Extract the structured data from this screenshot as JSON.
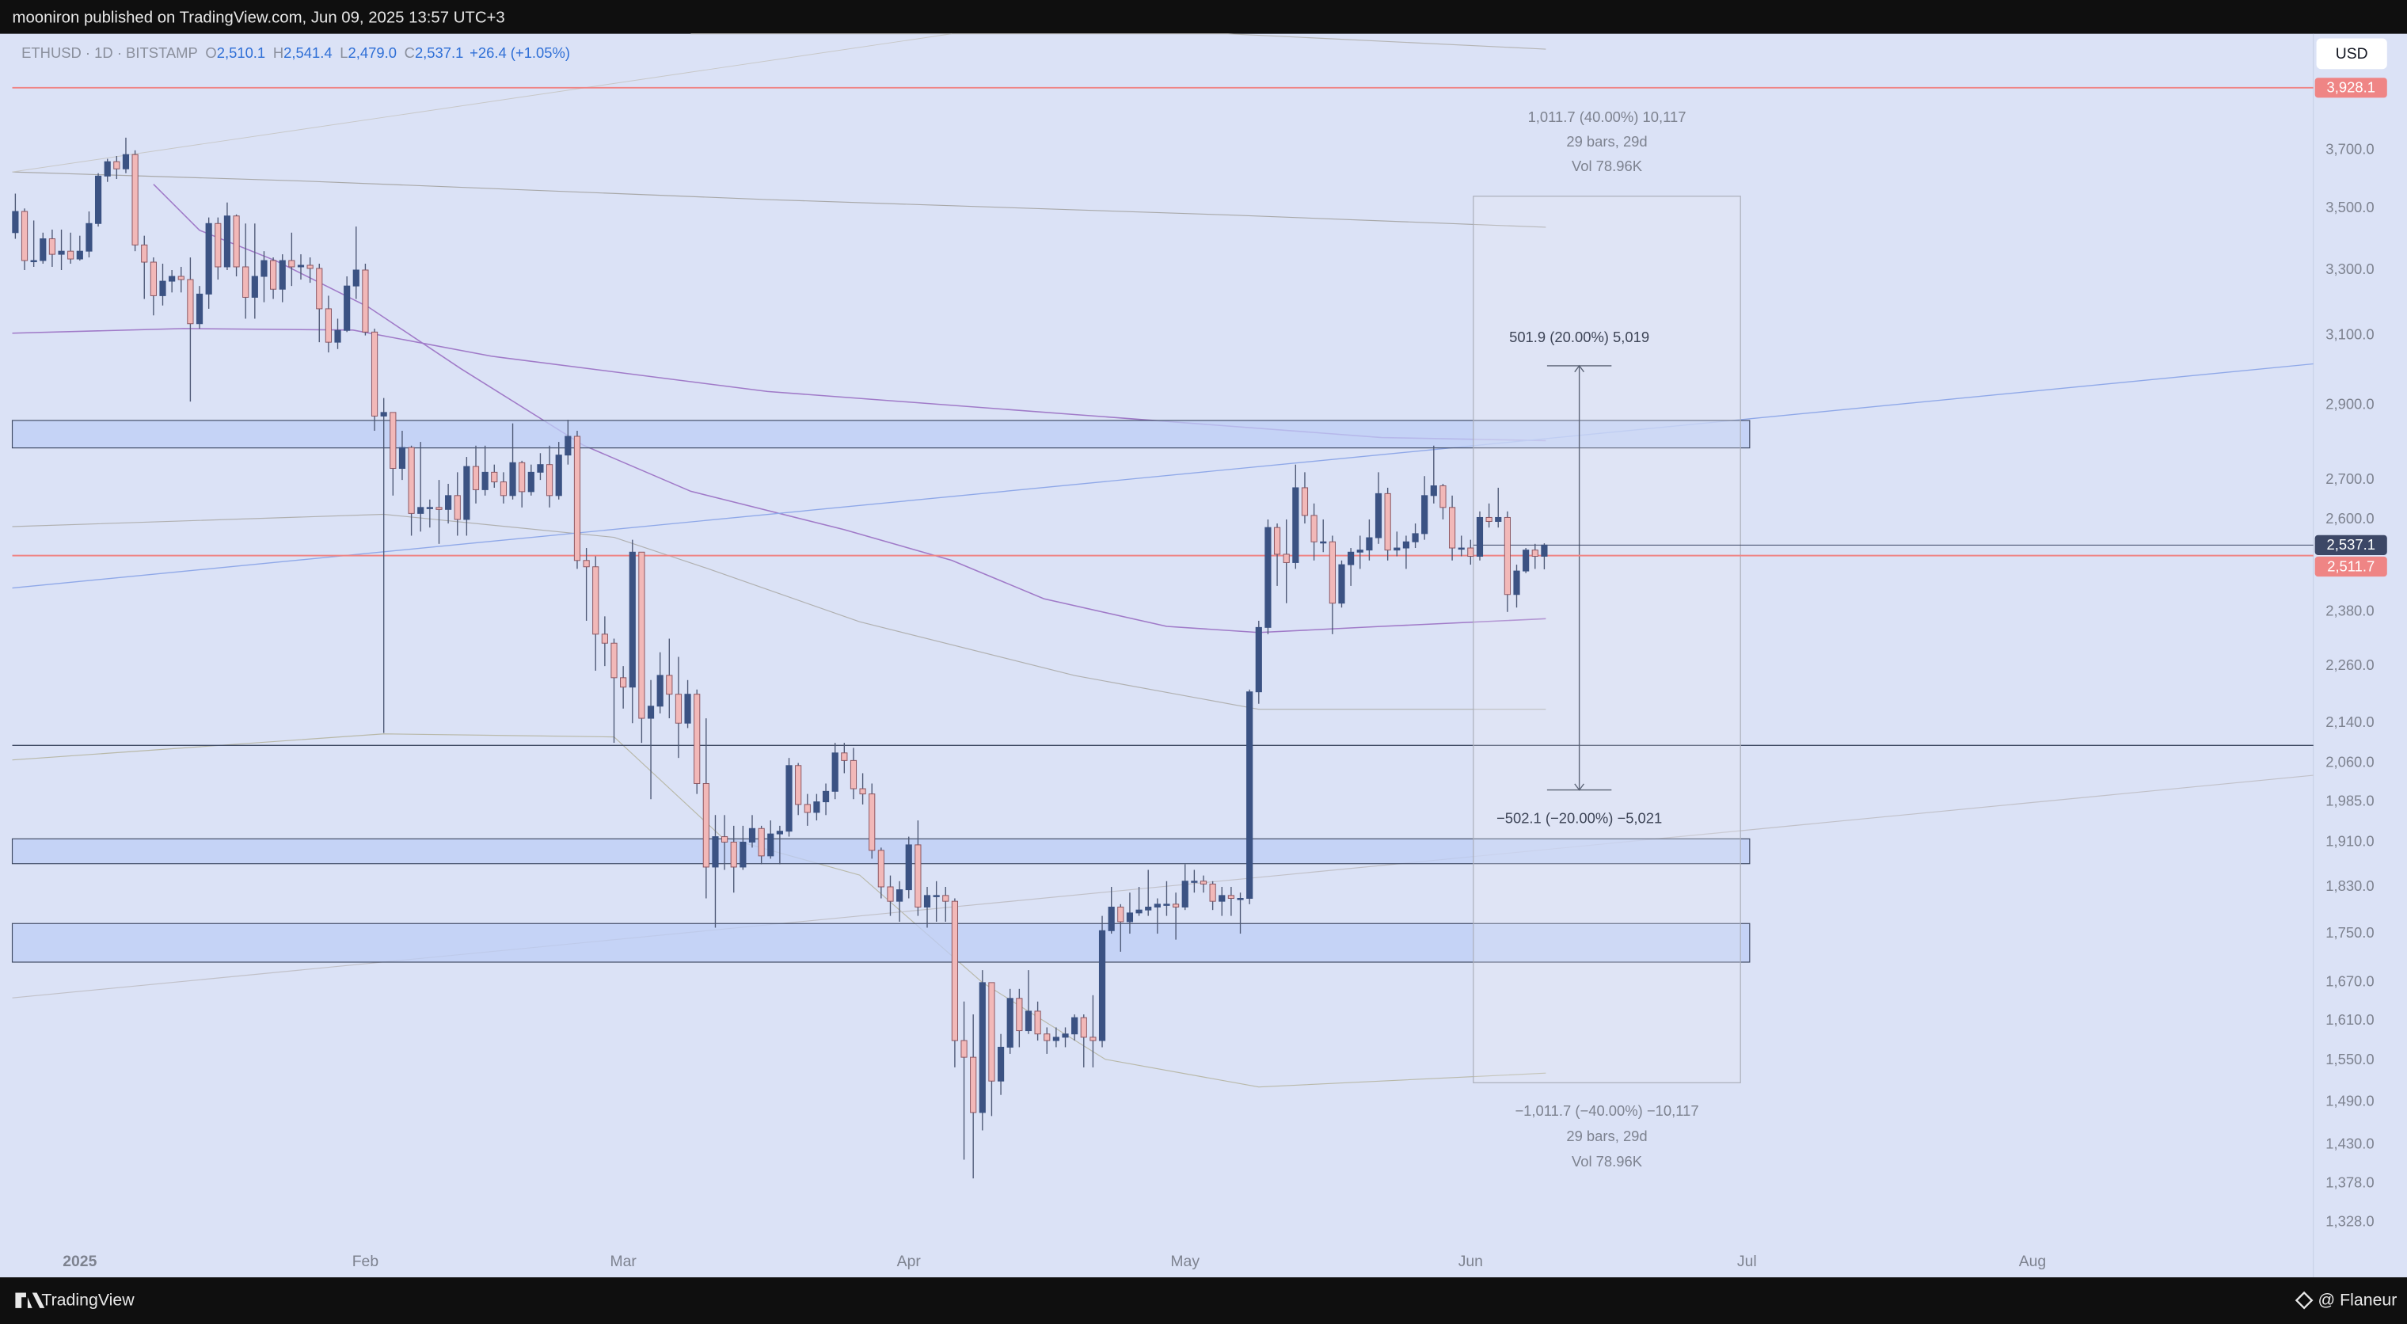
{
  "header": {
    "text": "mooniron published on TradingView.com, Jun 09, 2025 13:57 UTC+3"
  },
  "footer": {
    "brand": "TradingView",
    "author": "@ Flaneur"
  },
  "chart_data": {
    "type": "candlestick",
    "legend": {
      "symbol": "ETHUSD · 1D · BITSTAMP",
      "fields": [
        {
          "key": "O",
          "value": "2,510.1"
        },
        {
          "key": "H",
          "value": "2,541.4"
        },
        {
          "key": "L",
          "value": "2,479.0"
        },
        {
          "key": "C",
          "value": "2,537.1"
        }
      ],
      "change": "+26.4 (+1.05%)"
    },
    "currency": "USD",
    "up_color": "#3b5283",
    "down_color": "#f2b8b8",
    "down_border": "#8a5560",
    "wick_color": "#4d5875",
    "x": [
      -7,
      -6,
      -5,
      -4,
      -3,
      -2,
      -1,
      0,
      1,
      2,
      3,
      4,
      5,
      6,
      7,
      8,
      9,
      10,
      11,
      12,
      13,
      14,
      15,
      16,
      17,
      18,
      19,
      20,
      21,
      22,
      23,
      24,
      25,
      26,
      27,
      28,
      29,
      30,
      31,
      32,
      33,
      34,
      35,
      36,
      37,
      38,
      39,
      40,
      41,
      42,
      43,
      44,
      45,
      46,
      47,
      48,
      49,
      50,
      51,
      52,
      53,
      54,
      55,
      56,
      57,
      58,
      59,
      60,
      61,
      62,
      63,
      64,
      65,
      66,
      67,
      68,
      69,
      70,
      71,
      72,
      73,
      74,
      75,
      76,
      77,
      78,
      79,
      80,
      81,
      82,
      83,
      84,
      85,
      86,
      87,
      88,
      89,
      90,
      91,
      92,
      93,
      94,
      95,
      96,
      97,
      98,
      99,
      100,
      101,
      102,
      103,
      104,
      105,
      106,
      107,
      108,
      109,
      110,
      111,
      112,
      113,
      114,
      115,
      116,
      117,
      118,
      119,
      120,
      121,
      122,
      123,
      124,
      125,
      126,
      127,
      128,
      129,
      130,
      131,
      132,
      133,
      134,
      135,
      136,
      137,
      138,
      139,
      140,
      141,
      142,
      143,
      144,
      145,
      146,
      147,
      148,
      149,
      150,
      151,
      152,
      153,
      154,
      155,
      156,
      157,
      158,
      159
    ],
    "ohlc": [
      [
        3420,
        3550,
        3400,
        3490
      ],
      [
        3490,
        3500,
        3300,
        3330
      ],
      [
        3330,
        3460,
        3310,
        3330
      ],
      [
        3330,
        3420,
        3320,
        3400
      ],
      [
        3400,
        3430,
        3310,
        3350
      ],
      [
        3350,
        3430,
        3300,
        3360
      ],
      [
        3360,
        3420,
        3320,
        3335
      ],
      [
        3335,
        3410,
        3330,
        3360
      ],
      [
        3360,
        3490,
        3340,
        3450
      ],
      [
        3450,
        3620,
        3440,
        3610
      ],
      [
        3610,
        3670,
        3590,
        3660
      ],
      [
        3660,
        3680,
        3600,
        3635
      ],
      [
        3635,
        3745,
        3620,
        3685
      ],
      [
        3685,
        3700,
        3360,
        3380
      ],
      [
        3380,
        3410,
        3210,
        3325
      ],
      [
        3325,
        3340,
        3160,
        3220
      ],
      [
        3220,
        3320,
        3190,
        3265
      ],
      [
        3265,
        3300,
        3230,
        3280
      ],
      [
        3280,
        3310,
        3230,
        3270
      ],
      [
        3270,
        3340,
        2910,
        3135
      ],
      [
        3135,
        3250,
        3120,
        3225
      ],
      [
        3225,
        3470,
        3180,
        3450
      ],
      [
        3450,
        3470,
        3270,
        3310
      ],
      [
        3310,
        3520,
        3300,
        3475
      ],
      [
        3475,
        3480,
        3280,
        3310
      ],
      [
        3310,
        3450,
        3150,
        3215
      ],
      [
        3215,
        3450,
        3150,
        3280
      ],
      [
        3280,
        3360,
        3200,
        3330
      ],
      [
        3330,
        3340,
        3210,
        3240
      ],
      [
        3240,
        3350,
        3200,
        3330
      ],
      [
        3330,
        3420,
        3250,
        3310
      ],
      [
        3310,
        3350,
        3270,
        3315
      ],
      [
        3315,
        3340,
        3260,
        3305
      ],
      [
        3305,
        3320,
        3080,
        3180
      ],
      [
        3180,
        3220,
        3050,
        3080
      ],
      [
        3080,
        3150,
        3060,
        3115
      ],
      [
        3115,
        3280,
        3110,
        3250
      ],
      [
        3250,
        3440,
        3210,
        3300
      ],
      [
        3300,
        3320,
        3100,
        3110
      ],
      [
        3110,
        3120,
        2830,
        2870
      ],
      [
        2870,
        2920,
        2120,
        2880
      ],
      [
        2880,
        2880,
        2660,
        2730
      ],
      [
        2730,
        2830,
        2700,
        2785
      ],
      [
        2785,
        2790,
        2560,
        2615
      ],
      [
        2615,
        2800,
        2570,
        2630
      ],
      [
        2630,
        2650,
        2580,
        2630
      ],
      [
        2630,
        2700,
        2540,
        2625
      ],
      [
        2625,
        2690,
        2590,
        2660
      ],
      [
        2660,
        2720,
        2560,
        2600
      ],
      [
        2600,
        2760,
        2560,
        2735
      ],
      [
        2735,
        2790,
        2640,
        2675
      ],
      [
        2675,
        2790,
        2660,
        2720
      ],
      [
        2720,
        2740,
        2680,
        2695
      ],
      [
        2695,
        2720,
        2640,
        2660
      ],
      [
        2660,
        2850,
        2650,
        2745
      ],
      [
        2745,
        2750,
        2630,
        2670
      ],
      [
        2670,
        2740,
        2660,
        2720
      ],
      [
        2720,
        2770,
        2700,
        2740
      ],
      [
        2740,
        2790,
        2630,
        2660
      ],
      [
        2660,
        2800,
        2650,
        2765
      ],
      [
        2765,
        2860,
        2740,
        2815
      ],
      [
        2815,
        2830,
        2480,
        2500
      ],
      [
        2500,
        2530,
        2360,
        2485
      ],
      [
        2485,
        2510,
        2250,
        2330
      ],
      [
        2330,
        2370,
        2260,
        2310
      ],
      [
        2310,
        2320,
        2100,
        2235
      ],
      [
        2235,
        2260,
        2170,
        2215
      ],
      [
        2215,
        2550,
        2140,
        2520
      ],
      [
        2520,
        2520,
        2100,
        2150
      ],
      [
        2150,
        2230,
        1990,
        2175
      ],
      [
        2175,
        2290,
        2160,
        2240
      ],
      [
        2240,
        2320,
        2150,
        2200
      ],
      [
        2200,
        2280,
        2070,
        2140
      ],
      [
        2140,
        2230,
        2130,
        2200
      ],
      [
        2200,
        2210,
        2000,
        2020
      ],
      [
        2020,
        2150,
        1810,
        1865
      ],
      [
        1865,
        1960,
        1760,
        1920
      ],
      [
        1920,
        1960,
        1860,
        1910
      ],
      [
        1910,
        1940,
        1820,
        1865
      ],
      [
        1865,
        1940,
        1860,
        1910
      ],
      [
        1910,
        1960,
        1900,
        1935
      ],
      [
        1935,
        1940,
        1870,
        1885
      ],
      [
        1885,
        1950,
        1880,
        1925
      ],
      [
        1925,
        1940,
        1870,
        1930
      ],
      [
        1930,
        2070,
        1920,
        2055
      ],
      [
        2055,
        2060,
        1960,
        1980
      ],
      [
        1980,
        2000,
        1940,
        1965
      ],
      [
        1965,
        2000,
        1950,
        1985
      ],
      [
        1985,
        2020,
        1960,
        2005
      ],
      [
        2005,
        2100,
        1990,
        2080
      ],
      [
        2080,
        2100,
        2040,
        2065
      ],
      [
        2065,
        2090,
        1990,
        2010
      ],
      [
        2010,
        2040,
        1980,
        2000
      ],
      [
        2000,
        2020,
        1880,
        1895
      ],
      [
        1895,
        1900,
        1810,
        1830
      ],
      [
        1830,
        1850,
        1780,
        1805
      ],
      [
        1805,
        1840,
        1770,
        1825
      ],
      [
        1825,
        1920,
        1810,
        1905
      ],
      [
        1905,
        1950,
        1780,
        1795
      ],
      [
        1795,
        1830,
        1760,
        1815
      ],
      [
        1815,
        1840,
        1770,
        1815
      ],
      [
        1815,
        1830,
        1770,
        1805
      ],
      [
        1805,
        1810,
        1540,
        1580
      ],
      [
        1580,
        1640,
        1410,
        1555
      ],
      [
        1555,
        1620,
        1385,
        1475
      ],
      [
        1475,
        1690,
        1450,
        1670
      ],
      [
        1670,
        1670,
        1470,
        1520
      ],
      [
        1520,
        1590,
        1500,
        1570
      ],
      [
        1570,
        1660,
        1560,
        1645
      ],
      [
        1645,
        1660,
        1570,
        1595
      ],
      [
        1595,
        1690,
        1590,
        1625
      ],
      [
        1625,
        1640,
        1580,
        1590
      ],
      [
        1590,
        1600,
        1560,
        1580
      ],
      [
        1580,
        1600,
        1570,
        1585
      ],
      [
        1585,
        1600,
        1570,
        1590
      ],
      [
        1590,
        1620,
        1580,
        1615
      ],
      [
        1615,
        1620,
        1540,
        1585
      ],
      [
        1585,
        1650,
        1540,
        1580
      ],
      [
        1580,
        1780,
        1570,
        1755
      ],
      [
        1755,
        1830,
        1750,
        1795
      ],
      [
        1795,
        1800,
        1720,
        1770
      ],
      [
        1770,
        1820,
        1750,
        1785
      ],
      [
        1785,
        1830,
        1780,
        1790
      ],
      [
        1790,
        1860,
        1780,
        1795
      ],
      [
        1795,
        1810,
        1750,
        1800
      ],
      [
        1800,
        1840,
        1780,
        1800
      ],
      [
        1800,
        1820,
        1740,
        1795
      ],
      [
        1795,
        1870,
        1790,
        1840
      ],
      [
        1840,
        1860,
        1820,
        1840
      ],
      [
        1840,
        1850,
        1820,
        1835
      ],
      [
        1835,
        1840,
        1790,
        1805
      ],
      [
        1805,
        1830,
        1780,
        1815
      ],
      [
        1815,
        1830,
        1780,
        1810
      ],
      [
        1810,
        1820,
        1750,
        1810
      ],
      [
        1810,
        2210,
        1800,
        2205
      ],
      [
        2205,
        2360,
        2180,
        2345
      ],
      [
        2345,
        2600,
        2330,
        2580
      ],
      [
        2580,
        2590,
        2440,
        2515
      ],
      [
        2515,
        2600,
        2400,
        2495
      ],
      [
        2495,
        2740,
        2480,
        2680
      ],
      [
        2680,
        2720,
        2590,
        2610
      ],
      [
        2610,
        2640,
        2500,
        2545
      ],
      [
        2545,
        2600,
        2520,
        2545
      ],
      [
        2545,
        2560,
        2330,
        2400
      ],
      [
        2400,
        2500,
        2390,
        2490
      ],
      [
        2490,
        2530,
        2440,
        2520
      ],
      [
        2520,
        2560,
        2480,
        2525
      ],
      [
        2525,
        2600,
        2500,
        2555
      ],
      [
        2555,
        2720,
        2540,
        2665
      ],
      [
        2665,
        2680,
        2500,
        2525
      ],
      [
        2525,
        2570,
        2510,
        2530
      ],
      [
        2530,
        2560,
        2480,
        2545
      ],
      [
        2545,
        2590,
        2530,
        2565
      ],
      [
        2565,
        2710,
        2550,
        2660
      ],
      [
        2660,
        2790,
        2640,
        2685
      ],
      [
        2685,
        2690,
        2600,
        2630
      ],
      [
        2630,
        2660,
        2500,
        2530
      ],
      [
        2530,
        2560,
        2510,
        2530
      ],
      [
        2530,
        2550,
        2490,
        2510
      ],
      [
        2510,
        2620,
        2500,
        2605
      ],
      [
        2605,
        2640,
        2580,
        2595
      ],
      [
        2595,
        2680,
        2580,
        2605
      ],
      [
        2605,
        2620,
        2380,
        2420
      ],
      [
        2420,
        2490,
        2390,
        2475
      ],
      [
        2475,
        2530,
        2470,
        2525
      ],
      [
        2525,
        2540,
        2480,
        2510
      ],
      [
        2510.1,
        2541.4,
        2479.0,
        2537.1
      ]
    ],
    "xlim": [
      -7.333,
      242.5
    ],
    "xticks": [
      {
        "value": 0,
        "label": "2025"
      },
      {
        "value": 31,
        "label": "Feb"
      },
      {
        "value": 59,
        "label": "Mar"
      },
      {
        "value": 90,
        "label": "Apr"
      },
      {
        "value": 120,
        "label": "May"
      },
      {
        "value": 151,
        "label": "Jun"
      },
      {
        "value": 181,
        "label": "Jul"
      },
      {
        "value": 212,
        "label": "Aug"
      }
    ],
    "ylim": [
      1260,
      4136
    ],
    "log_scale": true,
    "grid": false,
    "yticks": [
      {
        "value": 3700,
        "label": "3,700.0"
      },
      {
        "value": 3500,
        "label": "3,500.0"
      },
      {
        "value": 3300,
        "label": "3,300.0"
      },
      {
        "value": 3100,
        "label": "3,100.0"
      },
      {
        "value": 2900,
        "label": "2,900.0"
      },
      {
        "value": 2700,
        "label": "2,700.0"
      },
      {
        "value": 2600,
        "label": "2,600.0"
      },
      {
        "value": 2380,
        "label": "2,380.0"
      },
      {
        "value": 2260,
        "label": "2,260.0"
      },
      {
        "value": 2140,
        "label": "2,140.0"
      },
      {
        "value": 2060,
        "label": "2,060.0"
      },
      {
        "value": 1985,
        "label": "1,985.0"
      },
      {
        "value": 1910,
        "label": "1,910.0"
      },
      {
        "value": 1830,
        "label": "1,830.0"
      },
      {
        "value": 1750,
        "label": "1,750.0"
      },
      {
        "value": 1670,
        "label": "1,670.0"
      },
      {
        "value": 1610,
        "label": "1,610.0"
      },
      {
        "value": 1550,
        "label": "1,550.0"
      },
      {
        "value": 1490,
        "label": "1,490.0"
      },
      {
        "value": 1430,
        "label": "1,430.0"
      },
      {
        "value": 1378,
        "label": "1,378.0"
      },
      {
        "value": 1328,
        "label": "1,328.0"
      }
    ],
    "price_lines": [
      {
        "value": 3928.1,
        "label": "3,928.1",
        "color": "#ef8585"
      },
      {
        "value": 2537.1,
        "label": "2,537.1",
        "color": "#3c4766"
      },
      {
        "value": 2511.7,
        "label": "2,511.7",
        "color": "#ef8585"
      }
    ],
    "zones": [
      [
        2784,
        2858
      ],
      [
        1871,
        1916
      ],
      [
        1703,
        1767
      ]
    ],
    "zone_x_end": 181.3,
    "level": 2095,
    "measure": {
      "xlim": [
        151.3,
        180.3
      ],
      "box_ylim": [
        1517.6,
        3541
      ],
      "arrow_x": 162.8,
      "arrow_ylim": [
        2007.6,
        3011.4
      ],
      "top_labels": [
        "1,011.7 (40.00%) 10,117",
        "29 bars, 29d",
        "Vol 78.96K"
      ],
      "bottom_labels": [
        "−1,011.7 (−40.00%) −10,117",
        "29 bars, 29d",
        "Vol 78.96K"
      ],
      "up_label": "501.9 (20.00%) 5,019",
      "down_label": "−502.1 (−20.00%) −5,021"
    }
  }
}
